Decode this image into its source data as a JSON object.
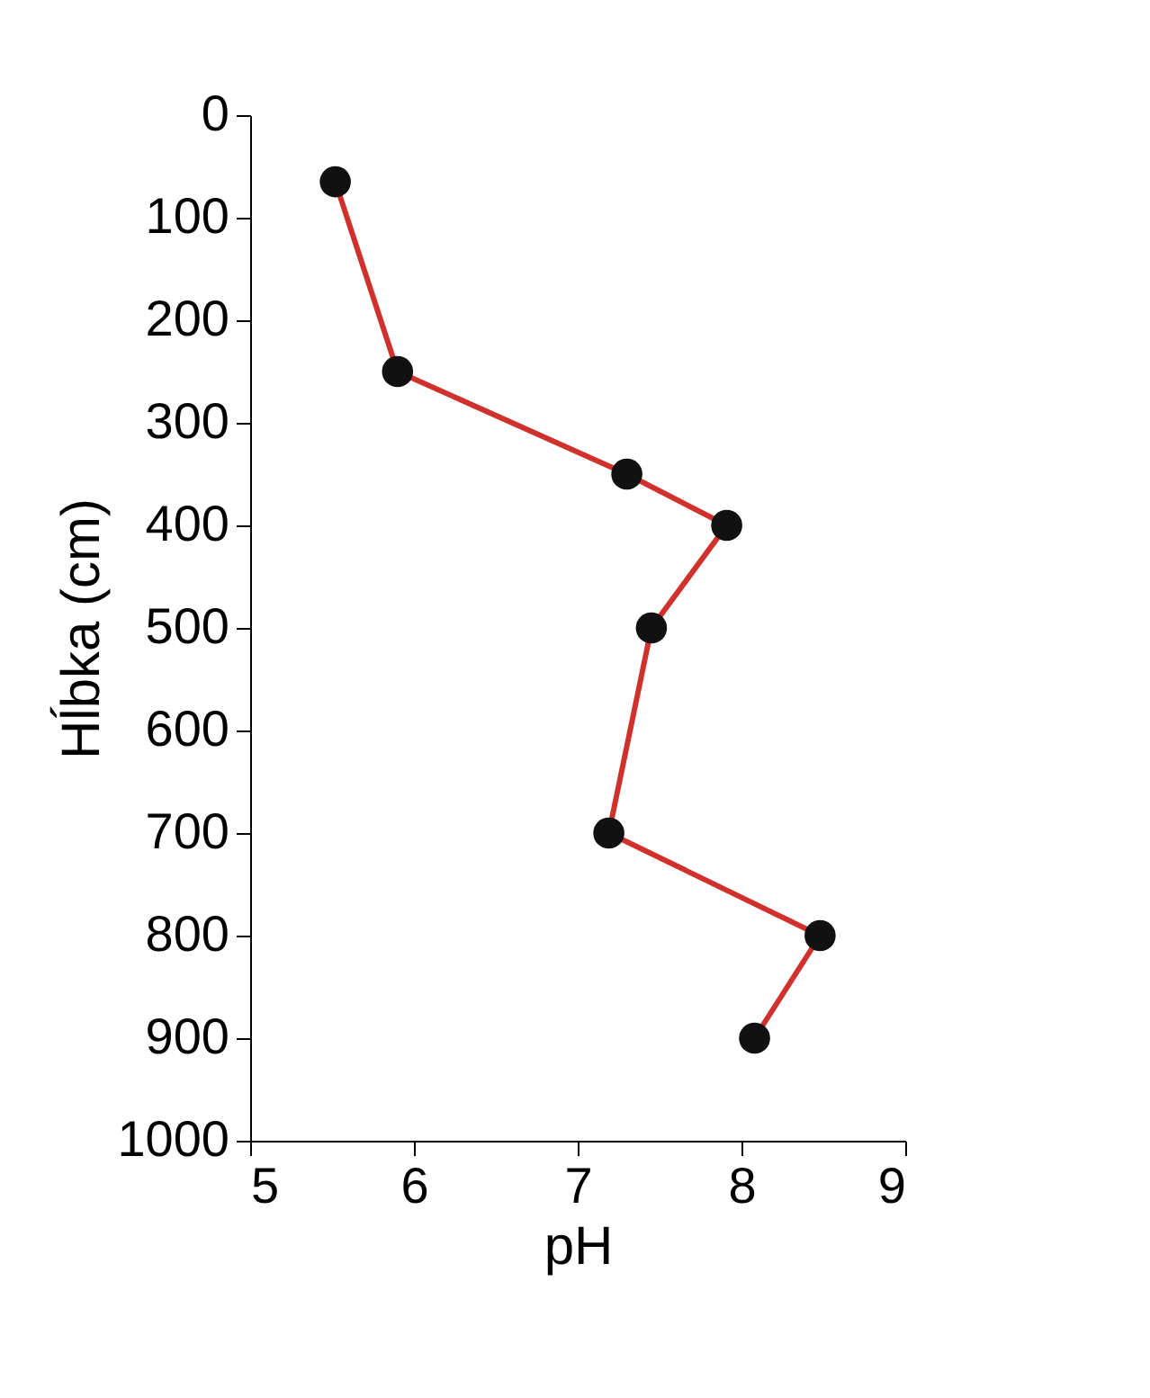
{
  "chart_data": {
    "type": "line",
    "xlabel": "pH",
    "ylabel": "Hĺbka (cm)",
    "x": [
      5.52,
      5.9,
      7.3,
      7.91,
      7.45,
      7.19,
      8.48,
      8.08
    ],
    "series": [
      {
        "color": "#d0312d",
        "colors": [
          "#111111",
          "#111111",
          "#111111",
          "#111111",
          "#111111",
          "#111111",
          "#111111",
          "#111111"
        ],
        "values": [
          65,
          250,
          350,
          400,
          500,
          700,
          800,
          900
        ]
      }
    ],
    "xlim": [
      5,
      9
    ],
    "xticks": [
      5,
      6,
      7,
      8,
      9
    ],
    "ylim": [
      1000,
      0
    ],
    "yticks": [
      0,
      100,
      200,
      300,
      400,
      500,
      600,
      700,
      800,
      900,
      1000
    ],
    "grid": false,
    "marker": "circle",
    "line_style": "solid"
  }
}
